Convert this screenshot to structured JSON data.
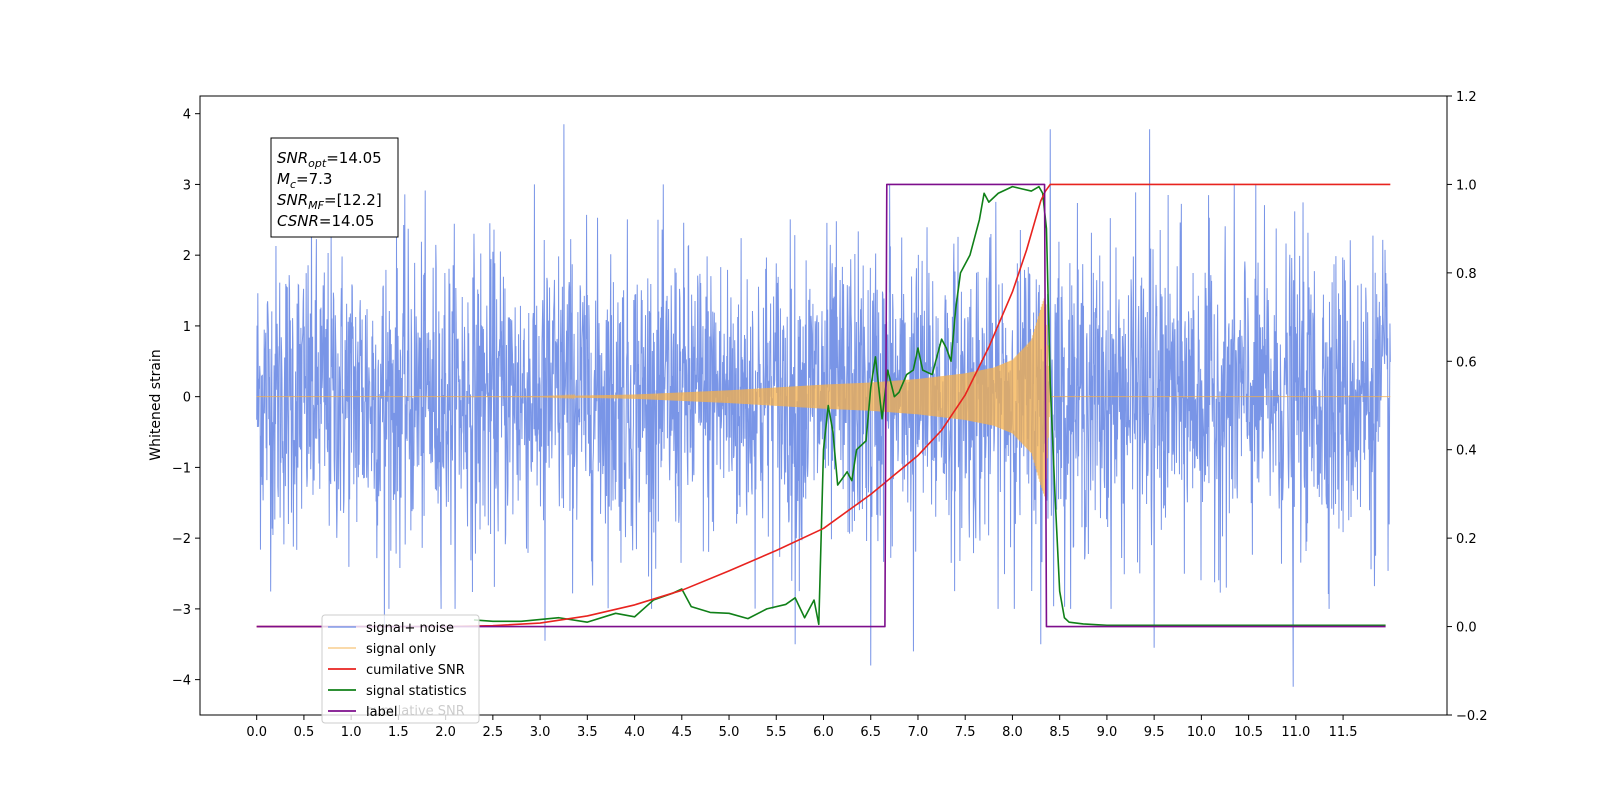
{
  "chart_data": {
    "type": "line",
    "ylabel": "Whitened strain",
    "xlim": [
      -0.6,
      12.6
    ],
    "ylim": [
      -4.5,
      4.25
    ],
    "y2lim": [
      -0.2,
      1.2
    ],
    "x_ticks": [
      0.0,
      0.5,
      1.0,
      1.5,
      2.0,
      2.5,
      3.0,
      3.5,
      4.0,
      4.5,
      5.0,
      5.5,
      6.0,
      6.5,
      7.0,
      7.5,
      8.0,
      8.5,
      9.0,
      9.5,
      10.0,
      10.5,
      11.0,
      11.5
    ],
    "x_tick_labels": [
      "0.0",
      "0.5",
      "1.0",
      "1.5",
      "2.0",
      "2.5",
      "3.0",
      "3.5",
      "4.0",
      "4.5",
      "5.0",
      "5.5",
      "6.0",
      "6.5",
      "7.0",
      "7.5",
      "8.0",
      "8.5",
      "9.0",
      "9.5",
      "10.0",
      "10.5",
      "11.0",
      "11.5"
    ],
    "y_ticks": [
      -4,
      -3,
      -2,
      -1,
      0,
      1,
      2,
      3,
      4
    ],
    "y_tick_labels": [
      "−4",
      "−3",
      "−2",
      "−1",
      "0",
      "1",
      "2",
      "3",
      "4"
    ],
    "y2_ticks": [
      -0.2,
      0.0,
      0.2,
      0.4,
      0.6,
      0.8,
      1.0,
      1.2
    ],
    "y2_tick_labels": [
      "−0.2",
      "0.0",
      "0.2",
      "0.4",
      "0.6",
      "0.8",
      "1.0",
      "1.2"
    ],
    "annotation": [
      {
        "base": "SNR",
        "sub": "opt",
        "value": "=14.05"
      },
      {
        "base": "M",
        "sub": "c",
        "value": "=7.3"
      },
      {
        "base": "SNR",
        "sub": "MF",
        "value": "=[12.2]"
      },
      {
        "base": "CSNR",
        "sub": "",
        "value": "=14.05"
      }
    ],
    "legend_position": "lower-left",
    "legend_hidden_label": "cumilative SNR",
    "series": [
      {
        "name": "signal+ noise",
        "axis": "left",
        "color": "#6a8ae4",
        "x_range": [
          0.0,
          12.0
        ],
        "y_range": [
          -4.1,
          3.85
        ],
        "note_values": {
          "peaks": [
            [
              3.25,
              3.85
            ],
            [
              8.4,
              3.78
            ],
            [
              9.45,
              3.78
            ],
            [
              6.7,
              3.0
            ],
            [
              10.97,
              -4.1
            ],
            [
              6.5,
              -3.8
            ],
            [
              6.95,
              -3.6
            ],
            [
              8.3,
              -3.5
            ],
            [
              5.7,
              -3.5
            ],
            [
              9.5,
              -3.55
            ],
            [
              1.35,
              -3.3
            ],
            [
              3.05,
              -3.45
            ]
          ]
        }
      },
      {
        "name": "signal only",
        "axis": "left",
        "color": "#f5b04b",
        "x_range": [
          0.0,
          12.0
        ],
        "envelope": {
          "x": [
            0.0,
            2.0,
            3.0,
            4.0,
            5.0,
            6.0,
            6.5,
            7.0,
            7.5,
            7.8,
            8.0,
            8.2,
            8.3,
            8.35,
            8.4,
            12.0
          ],
          "amp": [
            0.0,
            0.0,
            0.003,
            0.03,
            0.09,
            0.17,
            0.2,
            0.25,
            0.33,
            0.41,
            0.52,
            0.8,
            1.25,
            1.45,
            0.0,
            0.0
          ]
        }
      },
      {
        "name": "cumilative SNR",
        "axis": "right",
        "color": "#e8231f",
        "x": [
          0.0,
          2.0,
          2.5,
          3.0,
          3.5,
          4.0,
          4.5,
          5.0,
          5.5,
          6.0,
          6.5,
          7.0,
          7.25,
          7.5,
          7.75,
          8.0,
          8.15,
          8.3,
          8.35,
          8.4,
          12.0
        ],
        "y": [
          0.0,
          0.0,
          0.002,
          0.008,
          0.024,
          0.049,
          0.082,
          0.126,
          0.172,
          0.222,
          0.299,
          0.387,
          0.444,
          0.524,
          0.632,
          0.757,
          0.852,
          0.963,
          0.985,
          1.0,
          1.0
        ]
      },
      {
        "name": "signal statistics",
        "axis": "right",
        "color": "#108018",
        "x": [
          2.3,
          2.5,
          2.8,
          3.2,
          3.5,
          3.8,
          4.0,
          4.2,
          4.4,
          4.5,
          4.6,
          4.8,
          5.0,
          5.2,
          5.4,
          5.6,
          5.7,
          5.8,
          5.9,
          5.95,
          6.0,
          6.05,
          6.1,
          6.15,
          6.25,
          6.3,
          6.35,
          6.45,
          6.5,
          6.55,
          6.62,
          6.68,
          6.75,
          6.8,
          6.88,
          6.95,
          7.0,
          7.05,
          7.15,
          7.25,
          7.3,
          7.35,
          7.4,
          7.45,
          7.55,
          7.65,
          7.7,
          7.75,
          7.85,
          8.0,
          8.1,
          8.2,
          8.28,
          8.32,
          8.36,
          8.4,
          8.45,
          8.5,
          8.55,
          8.6,
          8.75,
          9.0,
          11.95
        ],
        "y": [
          0.015,
          0.012,
          0.012,
          0.02,
          0.01,
          0.03,
          0.022,
          0.06,
          0.075,
          0.085,
          0.045,
          0.032,
          0.03,
          0.018,
          0.04,
          0.05,
          0.065,
          0.02,
          0.06,
          0.005,
          0.4,
          0.5,
          0.44,
          0.32,
          0.35,
          0.33,
          0.4,
          0.42,
          0.54,
          0.61,
          0.47,
          0.58,
          0.52,
          0.53,
          0.57,
          0.58,
          0.63,
          0.58,
          0.57,
          0.65,
          0.63,
          0.6,
          0.72,
          0.8,
          0.84,
          0.92,
          0.98,
          0.96,
          0.98,
          0.995,
          0.99,
          0.985,
          0.995,
          0.98,
          0.9,
          0.55,
          0.3,
          0.08,
          0.02,
          0.01,
          0.006,
          0.003,
          0.003
        ]
      },
      {
        "name": "label",
        "axis": "right",
        "color": "#7d0e8c",
        "x": [
          0.0,
          6.65,
          6.67,
          8.34,
          8.36,
          11.95
        ],
        "y": [
          0.0,
          0.0,
          1.0,
          1.0,
          0.0,
          0.0
        ]
      }
    ]
  }
}
